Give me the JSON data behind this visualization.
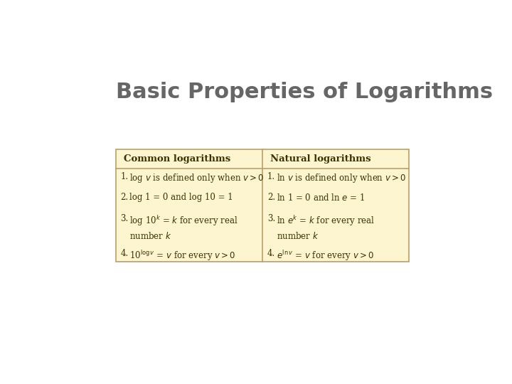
{
  "title": "Basic Properties of Logarithms",
  "title_color": "#666666",
  "title_fontsize": 22,
  "bg_color": "#ffffff",
  "outer_border_color": "#cccccc",
  "table_bg": "#fdf5d0",
  "table_border": "#b8a068",
  "col1_header": "Common logarithms",
  "col2_header": "Natural logarithms",
  "header_fontsize": 9.5,
  "body_fontsize": 8.5,
  "text_color": "#3a3000",
  "col1_items": [
    [
      "1.",
      "log $v$ is defined only when $v > 0$"
    ],
    [
      "2.",
      "log 1 = 0 and log 10 = 1"
    ],
    [
      "3.",
      "log 10$^k$ = $k$ for every real\nnumber $k$"
    ],
    [
      "4.",
      "10$^{\\log v}$ = $v$ for every $v > 0$"
    ]
  ],
  "col2_items": [
    [
      "1.",
      "ln $v$ is defined only when $v > 0$"
    ],
    [
      "2.",
      "ln 1 = 0 and ln $e$ = 1"
    ],
    [
      "3.",
      "ln $e^k$ = $k$ for every real\nnumber $k$"
    ],
    [
      "4.",
      "$e^{\\ln v}$ = $v$ for every $v > 0$"
    ]
  ]
}
